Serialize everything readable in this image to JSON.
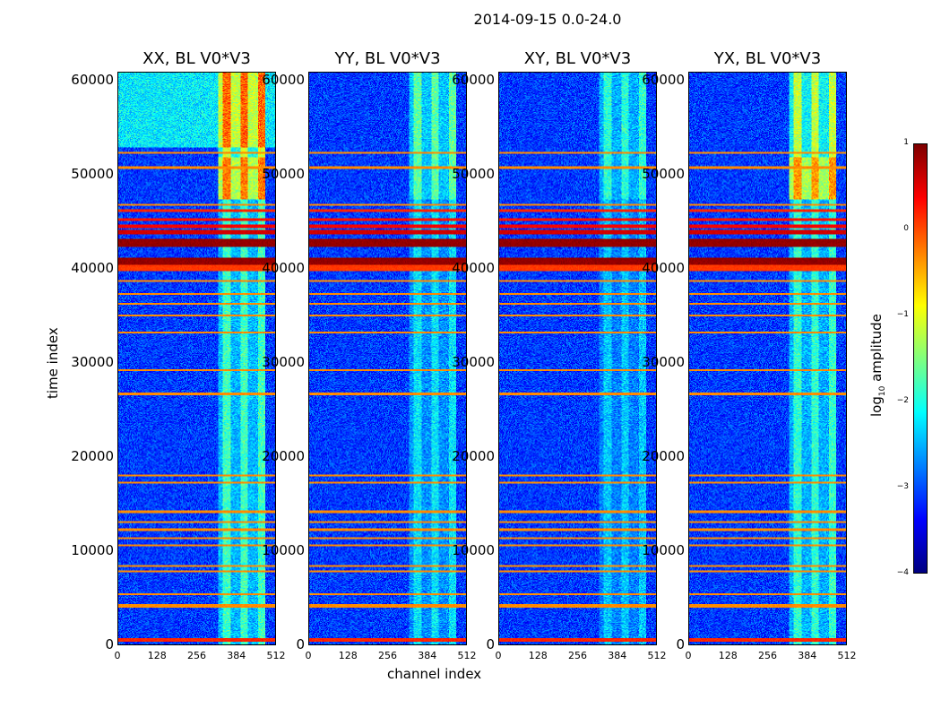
{
  "chart_data": {
    "type": "heatmap",
    "title": "2014-09-15 0.0-24.0",
    "xlabel": "channel index",
    "ylabel": "time index",
    "xlim": [
      0,
      512
    ],
    "ylim": [
      0,
      61000
    ],
    "xticks": [
      "0",
      "128",
      "256",
      "384",
      "512"
    ],
    "xtick_values": [
      0,
      128,
      256,
      384,
      512
    ],
    "yticks": [
      "0",
      "10000",
      "20000",
      "30000",
      "40000",
      "50000",
      "60000"
    ],
    "ytick_values": [
      0,
      10000,
      20000,
      30000,
      40000,
      50000,
      60000
    ],
    "panels": [
      {
        "title": "XX, BL V0*V3",
        "band_strength": 1.6,
        "band_channels": [
          325,
          480
        ]
      },
      {
        "title": "YY, BL V0*V3",
        "band_strength": 1.1,
        "band_channels": [
          325,
          480
        ]
      },
      {
        "title": "XY, BL V0*V3",
        "band_strength": 0.9,
        "band_channels": [
          325,
          480
        ]
      },
      {
        "title": "YX, BL V0*V3",
        "band_strength": 1.5,
        "band_channels": [
          325,
          480
        ]
      }
    ],
    "flagged_rows": [
      [
        300,
        700,
        0.2
      ],
      [
        4000,
        4300,
        -0.3
      ],
      [
        5300,
        5500,
        -0.3
      ],
      [
        7800,
        8000,
        -0.3
      ],
      [
        8300,
        8500,
        -0.3
      ],
      [
        10500,
        10700,
        -0.3
      ],
      [
        11300,
        11500,
        -0.3
      ],
      [
        12200,
        12400,
        -0.3
      ],
      [
        13000,
        13200,
        -0.3
      ],
      [
        14100,
        14300,
        -0.3
      ],
      [
        17200,
        17400,
        -0.3
      ],
      [
        18000,
        18200,
        -0.3
      ],
      [
        26600,
        26900,
        -0.3
      ],
      [
        29200,
        29400,
        -0.3
      ],
      [
        33200,
        33400,
        -0.3
      ],
      [
        35000,
        35200,
        -0.3
      ],
      [
        36300,
        36500,
        -0.3
      ],
      [
        37300,
        37500,
        -0.3
      ],
      [
        38700,
        38900,
        -0.3
      ],
      [
        39900,
        40600,
        0.1
      ],
      [
        40600,
        41300,
        0.9
      ],
      [
        42500,
        43300,
        0.9
      ],
      [
        43800,
        44300,
        0.6
      ],
      [
        44500,
        44800,
        0.4
      ],
      [
        45200,
        45500,
        0.3
      ],
      [
        46200,
        46500,
        0.2
      ],
      [
        46800,
        47000,
        -0.3
      ],
      [
        50800,
        51000,
        -0.3
      ],
      [
        52400,
        52600,
        -0.3
      ]
    ],
    "colorbar": {
      "label": "log10 amplitude",
      "label_base": "log",
      "label_sub": "10",
      "label_rest": " amplitude",
      "range": [
        -4,
        1
      ],
      "ticks": [
        "1",
        "0",
        "−1",
        "−2",
        "−3",
        "−4"
      ],
      "tick_values": [
        1,
        0,
        -1,
        -2,
        -3,
        -4
      ],
      "colormap": "jet"
    }
  }
}
